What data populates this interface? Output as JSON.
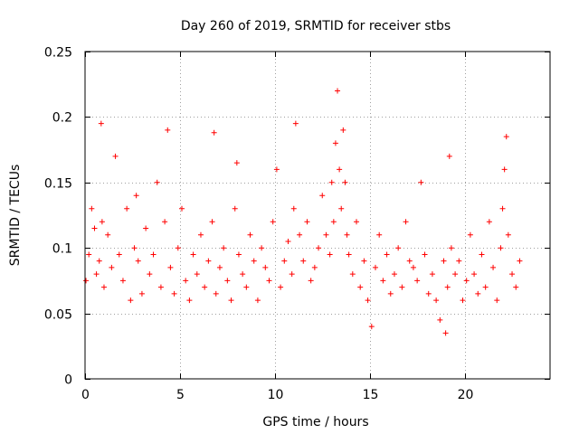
{
  "chart_data": {
    "type": "scatter",
    "title": "Day 260 of 2019, SRMTID for receiver stbs",
    "xlabel": "GPS time / hours",
    "ylabel": "SRMTID / TECUs",
    "xlim": [
      0,
      24.5
    ],
    "ylim": [
      0,
      0.25
    ],
    "xticks": [
      0,
      5,
      10,
      15,
      20
    ],
    "xtick_labels": [
      "0",
      "5",
      "10",
      "15",
      "20"
    ],
    "yticks": [
      0,
      0.05,
      0.1,
      0.15,
      0.2,
      0.25
    ],
    "ytick_labels": [
      "0",
      "0.05",
      "0.1",
      "0.15",
      "0.2",
      "0.25"
    ],
    "grid": true,
    "marker": "+",
    "series": [
      {
        "name": "SRMTID",
        "color": "#ff0000",
        "x": [
          0.05,
          0.2,
          0.35,
          0.5,
          0.6,
          0.75,
          0.85,
          0.9,
          1.0,
          1.2,
          1.4,
          1.6,
          1.8,
          2.0,
          2.2,
          2.4,
          2.6,
          2.7,
          2.8,
          3.0,
          3.2,
          3.4,
          3.6,
          3.8,
          4.0,
          4.2,
          4.35,
          4.5,
          4.7,
          4.9,
          5.1,
          5.3,
          5.5,
          5.7,
          5.9,
          6.1,
          6.3,
          6.5,
          6.7,
          6.8,
          6.9,
          7.1,
          7.3,
          7.5,
          7.7,
          7.9,
          8.0,
          8.1,
          8.3,
          8.5,
          8.7,
          8.9,
          9.1,
          9.3,
          9.5,
          9.7,
          9.9,
          10.1,
          10.3,
          10.5,
          10.7,
          10.9,
          11.0,
          11.1,
          11.3,
          11.5,
          11.7,
          11.9,
          12.1,
          12.3,
          12.5,
          12.7,
          12.9,
          13.0,
          13.1,
          13.2,
          13.3,
          13.4,
          13.5,
          13.6,
          13.7,
          13.8,
          13.9,
          14.1,
          14.3,
          14.5,
          14.7,
          14.9,
          15.1,
          15.3,
          15.5,
          15.7,
          15.9,
          16.1,
          16.3,
          16.5,
          16.7,
          16.9,
          17.1,
          17.3,
          17.5,
          17.7,
          17.9,
          18.1,
          18.3,
          18.5,
          18.7,
          18.9,
          19.0,
          19.1,
          19.2,
          19.3,
          19.5,
          19.7,
          19.9,
          20.1,
          20.3,
          20.5,
          20.7,
          20.9,
          21.1,
          21.3,
          21.5,
          21.7,
          21.9,
          22.0,
          22.1,
          22.2,
          22.3,
          22.5,
          22.7,
          22.9
        ],
        "values": [
          0.075,
          0.095,
          0.13,
          0.115,
          0.08,
          0.09,
          0.195,
          0.12,
          0.07,
          0.11,
          0.085,
          0.17,
          0.095,
          0.075,
          0.13,
          0.06,
          0.1,
          0.14,
          0.09,
          0.065,
          0.115,
          0.08,
          0.095,
          0.15,
          0.07,
          0.12,
          0.19,
          0.085,
          0.065,
          0.1,
          0.13,
          0.075,
          0.06,
          0.095,
          0.08,
          0.11,
          0.07,
          0.09,
          0.12,
          0.188,
          0.065,
          0.085,
          0.1,
          0.075,
          0.06,
          0.13,
          0.165,
          0.095,
          0.08,
          0.07,
          0.11,
          0.09,
          0.06,
          0.1,
          0.085,
          0.075,
          0.12,
          0.16,
          0.07,
          0.09,
          0.105,
          0.08,
          0.13,
          0.195,
          0.11,
          0.09,
          0.12,
          0.075,
          0.085,
          0.1,
          0.14,
          0.11,
          0.095,
          0.15,
          0.12,
          0.18,
          0.22,
          0.16,
          0.13,
          0.19,
          0.15,
          0.11,
          0.095,
          0.08,
          0.12,
          0.07,
          0.09,
          0.06,
          0.04,
          0.085,
          0.11,
          0.075,
          0.095,
          0.065,
          0.08,
          0.1,
          0.07,
          0.12,
          0.09,
          0.085,
          0.075,
          0.15,
          0.095,
          0.065,
          0.08,
          0.06,
          0.045,
          0.09,
          0.035,
          0.07,
          0.17,
          0.1,
          0.08,
          0.09,
          0.06,
          0.075,
          0.11,
          0.08,
          0.065,
          0.095,
          0.07,
          0.12,
          0.085,
          0.06,
          0.1,
          0.13,
          0.16,
          0.185,
          0.11,
          0.08,
          0.07,
          0.09
        ]
      }
    ]
  }
}
